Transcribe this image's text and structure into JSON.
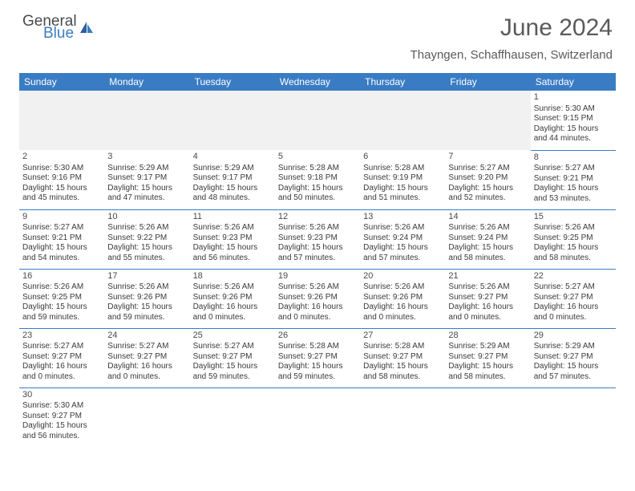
{
  "brand": {
    "part1": "General",
    "part2": "Blue"
  },
  "title": "June 2024",
  "location": "Thayngen, Schaffhausen, Switzerland",
  "header_bg": "#3a7cc4",
  "header_fg": "#ffffff",
  "border_color": "#3a7cc4",
  "blank_bg": "#f1f1f1",
  "text_color": "#3a3a3a",
  "days": [
    "Sunday",
    "Monday",
    "Tuesday",
    "Wednesday",
    "Thursday",
    "Friday",
    "Saturday"
  ],
  "weeks": [
    [
      null,
      null,
      null,
      null,
      null,
      null,
      {
        "n": 1,
        "sr": "5:30 AM",
        "ss": "9:15 PM",
        "dl": "15 hours and 44 minutes."
      }
    ],
    [
      {
        "n": 2,
        "sr": "5:30 AM",
        "ss": "9:16 PM",
        "dl": "15 hours and 45 minutes."
      },
      {
        "n": 3,
        "sr": "5:29 AM",
        "ss": "9:17 PM",
        "dl": "15 hours and 47 minutes."
      },
      {
        "n": 4,
        "sr": "5:29 AM",
        "ss": "9:17 PM",
        "dl": "15 hours and 48 minutes."
      },
      {
        "n": 5,
        "sr": "5:28 AM",
        "ss": "9:18 PM",
        "dl": "15 hours and 50 minutes."
      },
      {
        "n": 6,
        "sr": "5:28 AM",
        "ss": "9:19 PM",
        "dl": "15 hours and 51 minutes."
      },
      {
        "n": 7,
        "sr": "5:27 AM",
        "ss": "9:20 PM",
        "dl": "15 hours and 52 minutes."
      },
      {
        "n": 8,
        "sr": "5:27 AM",
        "ss": "9:21 PM",
        "dl": "15 hours and 53 minutes."
      }
    ],
    [
      {
        "n": 9,
        "sr": "5:27 AM",
        "ss": "9:21 PM",
        "dl": "15 hours and 54 minutes."
      },
      {
        "n": 10,
        "sr": "5:26 AM",
        "ss": "9:22 PM",
        "dl": "15 hours and 55 minutes."
      },
      {
        "n": 11,
        "sr": "5:26 AM",
        "ss": "9:23 PM",
        "dl": "15 hours and 56 minutes."
      },
      {
        "n": 12,
        "sr": "5:26 AM",
        "ss": "9:23 PM",
        "dl": "15 hours and 57 minutes."
      },
      {
        "n": 13,
        "sr": "5:26 AM",
        "ss": "9:24 PM",
        "dl": "15 hours and 57 minutes."
      },
      {
        "n": 14,
        "sr": "5:26 AM",
        "ss": "9:24 PM",
        "dl": "15 hours and 58 minutes."
      },
      {
        "n": 15,
        "sr": "5:26 AM",
        "ss": "9:25 PM",
        "dl": "15 hours and 58 minutes."
      }
    ],
    [
      {
        "n": 16,
        "sr": "5:26 AM",
        "ss": "9:25 PM",
        "dl": "15 hours and 59 minutes."
      },
      {
        "n": 17,
        "sr": "5:26 AM",
        "ss": "9:26 PM",
        "dl": "15 hours and 59 minutes."
      },
      {
        "n": 18,
        "sr": "5:26 AM",
        "ss": "9:26 PM",
        "dl": "16 hours and 0 minutes."
      },
      {
        "n": 19,
        "sr": "5:26 AM",
        "ss": "9:26 PM",
        "dl": "16 hours and 0 minutes."
      },
      {
        "n": 20,
        "sr": "5:26 AM",
        "ss": "9:26 PM",
        "dl": "16 hours and 0 minutes."
      },
      {
        "n": 21,
        "sr": "5:26 AM",
        "ss": "9:27 PM",
        "dl": "16 hours and 0 minutes."
      },
      {
        "n": 22,
        "sr": "5:27 AM",
        "ss": "9:27 PM",
        "dl": "16 hours and 0 minutes."
      }
    ],
    [
      {
        "n": 23,
        "sr": "5:27 AM",
        "ss": "9:27 PM",
        "dl": "16 hours and 0 minutes."
      },
      {
        "n": 24,
        "sr": "5:27 AM",
        "ss": "9:27 PM",
        "dl": "16 hours and 0 minutes."
      },
      {
        "n": 25,
        "sr": "5:27 AM",
        "ss": "9:27 PM",
        "dl": "15 hours and 59 minutes."
      },
      {
        "n": 26,
        "sr": "5:28 AM",
        "ss": "9:27 PM",
        "dl": "15 hours and 59 minutes."
      },
      {
        "n": 27,
        "sr": "5:28 AM",
        "ss": "9:27 PM",
        "dl": "15 hours and 58 minutes."
      },
      {
        "n": 28,
        "sr": "5:29 AM",
        "ss": "9:27 PM",
        "dl": "15 hours and 58 minutes."
      },
      {
        "n": 29,
        "sr": "5:29 AM",
        "ss": "9:27 PM",
        "dl": "15 hours and 57 minutes."
      }
    ],
    [
      {
        "n": 30,
        "sr": "5:30 AM",
        "ss": "9:27 PM",
        "dl": "15 hours and 56 minutes."
      },
      null,
      null,
      null,
      null,
      null,
      null
    ]
  ],
  "labels": {
    "sunrise": "Sunrise:",
    "sunset": "Sunset:",
    "daylight": "Daylight:"
  }
}
